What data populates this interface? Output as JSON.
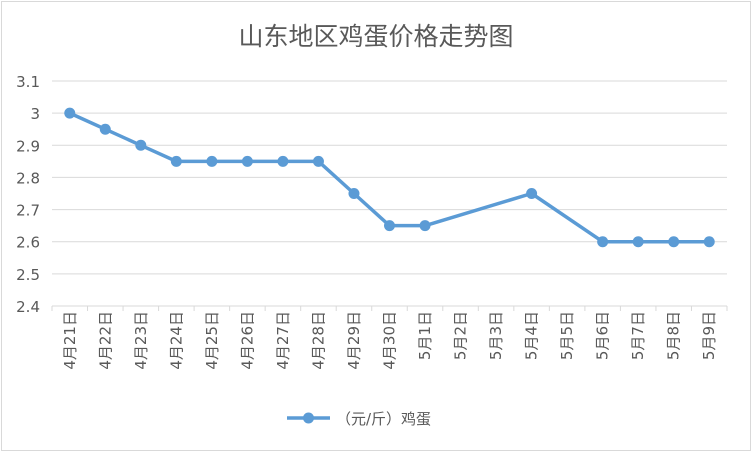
{
  "chart_data": {
    "type": "line",
    "title": "山东地区鸡蛋价格走势图",
    "xlabel": "",
    "ylabel": "",
    "categories": [
      "4月21日",
      "4月22日",
      "4月23日",
      "4月24日",
      "4月25日",
      "4月26日",
      "4月27日",
      "4月28日",
      "4月29日",
      "4月30日",
      "5月1日",
      "5月2日",
      "5月3日",
      "5月4日",
      "5月5日",
      "5月6日",
      "5月7日",
      "5月8日",
      "5月9日"
    ],
    "series": [
      {
        "name": "（元/斤）鸡蛋",
        "color": "#5b9bd5",
        "values": [
          3.0,
          2.95,
          2.9,
          2.85,
          2.85,
          2.85,
          2.85,
          2.85,
          2.75,
          2.65,
          2.65,
          null,
          null,
          2.75,
          null,
          2.6,
          2.6,
          2.6,
          2.6
        ]
      }
    ],
    "ylim": [
      2.4,
      3.1
    ],
    "yticks": [
      2.4,
      2.5,
      2.6,
      2.7,
      2.8,
      2.9,
      3.0,
      3.1
    ],
    "ytick_labels": [
      "2.4",
      "2.5",
      "2.6",
      "2.7",
      "2.8",
      "2.9",
      "3",
      "3.1"
    ],
    "grid": true,
    "legend_position": "bottom",
    "gap_handling": "connect"
  }
}
